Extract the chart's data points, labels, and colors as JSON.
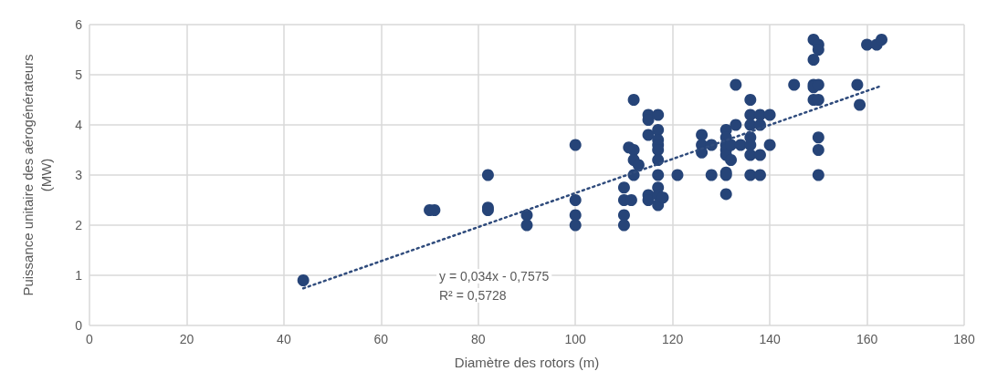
{
  "chart_data": {
    "type": "scatter",
    "xlabel": "Diamètre des rotors (m)",
    "ylabel": "Puissance unitaire des aérogénérateurs\n(MW)",
    "xlim": [
      0,
      180
    ],
    "xticks": [
      0,
      20,
      40,
      60,
      80,
      100,
      120,
      140,
      160,
      180
    ],
    "ylim": [
      0,
      6
    ],
    "yticks": [
      0,
      1,
      2,
      3,
      4,
      5,
      6
    ],
    "grid": true,
    "marker": "circle",
    "annotations": [
      "y = 0,034x - 0,7575",
      "R² = 0,5728"
    ],
    "series": [
      {
        "color": "#264478",
        "x": [
          44,
          70,
          71,
          82,
          82,
          82,
          90,
          90,
          100,
          100,
          100,
          100,
          110,
          110,
          110,
          110,
          111,
          112,
          112,
          112,
          112,
          111.5,
          113,
          115,
          115,
          115,
          115,
          115,
          117,
          117,
          117,
          117,
          117,
          117,
          117,
          117,
          117,
          117,
          118,
          121,
          126,
          126,
          126,
          128,
          128,
          131,
          131,
          131,
          131,
          131,
          131,
          131,
          131,
          132,
          132,
          133,
          133,
          134,
          136,
          136,
          136,
          136,
          136,
          136,
          136,
          138,
          138,
          138,
          138,
          140,
          140,
          145,
          149,
          149,
          149,
          149,
          149,
          150,
          150,
          150,
          150,
          150,
          150,
          150,
          158,
          158.5,
          160,
          162,
          163
        ],
        "values": [
          0.9,
          2.3,
          2.3,
          3.0,
          2.35,
          2.3,
          2.2,
          2.0,
          3.6,
          2.5,
          2.2,
          2.0,
          2.75,
          2.5,
          2.2,
          2.0,
          3.55,
          4.5,
          3.5,
          3.3,
          3.0,
          2.5,
          3.2,
          4.2,
          4.1,
          3.8,
          2.6,
          2.5,
          4.2,
          3.9,
          3.7,
          3.6,
          3.5,
          3.3,
          3.0,
          2.75,
          2.6,
          2.4,
          2.55,
          3.0,
          3.8,
          3.6,
          3.45,
          3.0,
          3.6,
          3.9,
          3.75,
          3.6,
          3.5,
          3.4,
          3.05,
          3.0,
          2.62,
          3.3,
          3.6,
          4.0,
          4.8,
          3.6,
          4.5,
          4.2,
          4.0,
          3.75,
          3.6,
          3.4,
          3.0,
          4.2,
          4.0,
          3.4,
          3.0,
          4.2,
          3.6,
          4.8,
          5.7,
          5.3,
          4.8,
          4.75,
          4.5,
          5.6,
          5.5,
          4.8,
          4.5,
          3.75,
          3.5,
          3.0,
          4.8,
          4.4,
          5.6,
          5.6,
          5.7
        ]
      },
      {
        "type": "line",
        "color": "#2f4b7c",
        "line_style": "dotted",
        "marker": "none",
        "x": [
          44,
          163
        ],
        "values": [
          0.74,
          4.78
        ]
      }
    ]
  }
}
